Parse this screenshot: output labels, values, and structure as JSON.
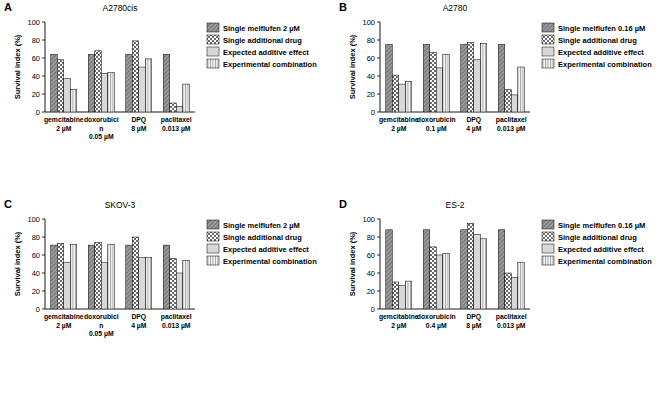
{
  "chart_data": [
    {
      "type": "bar",
      "panel_label": "A",
      "title": "A2780cis",
      "y_label": "Survival index (%)",
      "categories": [
        "gemcitabine\n2 µM",
        "doxorubici\nn\n0.05 µM",
        "DPQ\n8 µM",
        "paclitaxel\n0.013 µM"
      ],
      "series": [
        {
          "name": "Single melflufen 2 µM",
          "color": "#9a9a9a",
          "values": [
            64,
            64,
            64,
            64
          ]
        },
        {
          "name": "Single additional drug",
          "color": "#ffffff",
          "values": [
            58,
            68,
            79,
            10
          ]
        },
        {
          "name": "Expected additive effect",
          "color": "#d8d8d8",
          "values": [
            37,
            43,
            50,
            6
          ]
        },
        {
          "name": "Experimental combination",
          "color": "#f4f4f4",
          "values": [
            25,
            44,
            59,
            31
          ]
        }
      ],
      "ylim": [
        0,
        100
      ],
      "yticks": [
        0,
        20,
        40,
        60,
        80,
        100
      ],
      "legend": "right"
    },
    {
      "type": "bar",
      "panel_label": "B",
      "title": "A2780",
      "y_label": "Survival index (%)",
      "categories": [
        "gemcitabine\n2 µM",
        "doxorubicin\n0.1 µM",
        "DPQ\n4 µM",
        "paclitaxel\n0.013 µM"
      ],
      "series": [
        {
          "name": "Single melflufen 0.16 µM",
          "color": "#9a9a9a",
          "values": [
            75,
            75,
            75,
            75
          ]
        },
        {
          "name": "Single additional drug",
          "color": "#ffffff",
          "values": [
            41,
            66,
            77,
            25
          ]
        },
        {
          "name": "Expected additive effect",
          "color": "#d8d8d8",
          "values": [
            31,
            49,
            58,
            19
          ]
        },
        {
          "name": "Experimental combination",
          "color": "#f4f4f4",
          "values": [
            34,
            64,
            76,
            50
          ]
        }
      ],
      "ylim": [
        0,
        100
      ],
      "yticks": [
        0,
        20,
        40,
        60,
        80,
        100
      ],
      "legend": "right"
    },
    {
      "type": "bar",
      "panel_label": "C",
      "title": "SKOV-3",
      "y_label": "Survival index (%)",
      "categories": [
        "gemcitabine\n2 µM",
        "doxorubici\nn\n0.05 µM",
        "DPQ\n4 µM",
        "paclitaxel\n0.013 µM"
      ],
      "series": [
        {
          "name": "Single melflufen 2 µM",
          "color": "#9a9a9a",
          "values": [
            71,
            71,
            71,
            71
          ]
        },
        {
          "name": "Single additional drug",
          "color": "#ffffff",
          "values": [
            73,
            74,
            80,
            56
          ]
        },
        {
          "name": "Expected additive effect",
          "color": "#d8d8d8",
          "values": [
            52,
            52,
            57,
            40
          ]
        },
        {
          "name": "Experimental combination",
          "color": "#f4f4f4",
          "values": [
            72,
            72,
            57,
            54
          ]
        }
      ],
      "ylim": [
        0,
        100
      ],
      "yticks": [
        0,
        20,
        40,
        60,
        80,
        100
      ],
      "legend": "right"
    },
    {
      "type": "bar",
      "panel_label": "D",
      "title": "ES-2",
      "y_label": "Survival index (%)",
      "categories": [
        "gemcitabine\n2 µM",
        "doxorubicin\n0.4 µM",
        "DPQ\n8 µM",
        "paclitaxel\n0.013 µM"
      ],
      "series": [
        {
          "name": "Single melflufen 0.16 µM",
          "color": "#9a9a9a",
          "values": [
            88,
            88,
            88,
            88
          ]
        },
        {
          "name": "Single additional drug",
          "color": "#ffffff",
          "values": [
            30,
            69,
            95,
            40
          ]
        },
        {
          "name": "Expected additive effect",
          "color": "#d8d8d8",
          "values": [
            26,
            60,
            83,
            35
          ]
        },
        {
          "name": "Experimental combination",
          "color": "#f4f4f4",
          "values": [
            31,
            62,
            78,
            52
          ]
        }
      ],
      "ylim": [
        0,
        100
      ],
      "yticks": [
        0,
        20,
        40,
        60,
        80,
        100
      ],
      "legend": "right"
    }
  ]
}
